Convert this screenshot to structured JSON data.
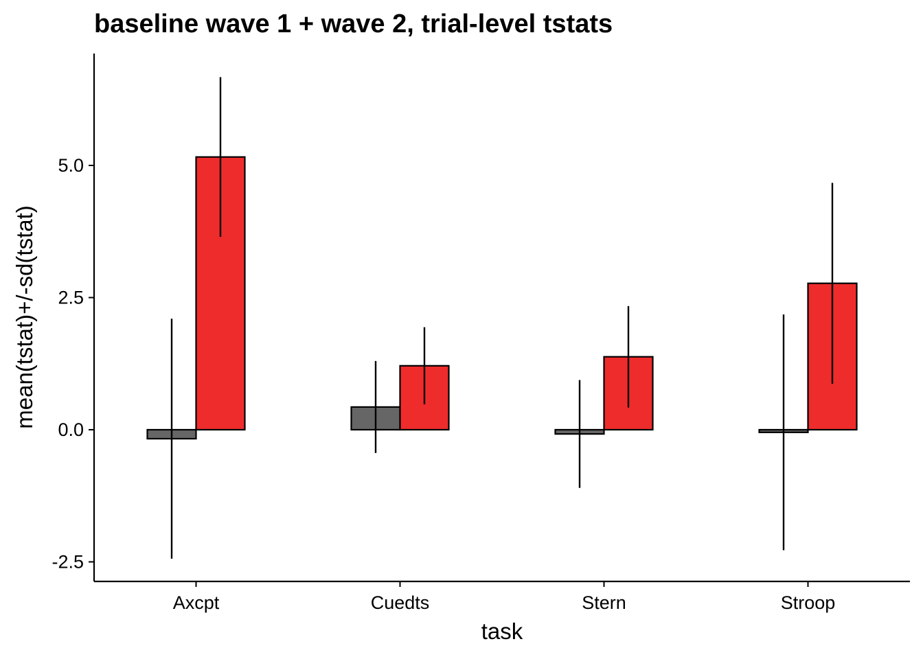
{
  "chart_data": {
    "type": "bar",
    "title": "baseline wave 1 + wave 2, trial-level tstats",
    "xlabel": "task",
    "ylabel": "mean(tstat)+/-sd(tstat)",
    "categories": [
      "Axcpt",
      "Cuedts",
      "Stern",
      "Stroop"
    ],
    "ylim": [
      -2.85,
      7.1
    ],
    "yticks": [
      -2.5,
      0.0,
      2.5,
      5.0
    ],
    "ytick_labels": [
      "-2.5",
      "0.0",
      "2.5",
      "5.0"
    ],
    "grid": false,
    "legend": "none",
    "series": [
      {
        "color": "#666666",
        "values": [
          -0.17,
          0.43,
          -0.08,
          -0.05
        ],
        "sd": [
          2.27,
          0.87,
          1.02,
          2.23
        ]
      },
      {
        "color": "#EE2C2C",
        "values": [
          5.16,
          1.21,
          1.38,
          2.77
        ],
        "sd": [
          1.51,
          0.73,
          0.96,
          1.9
        ]
      }
    ]
  }
}
